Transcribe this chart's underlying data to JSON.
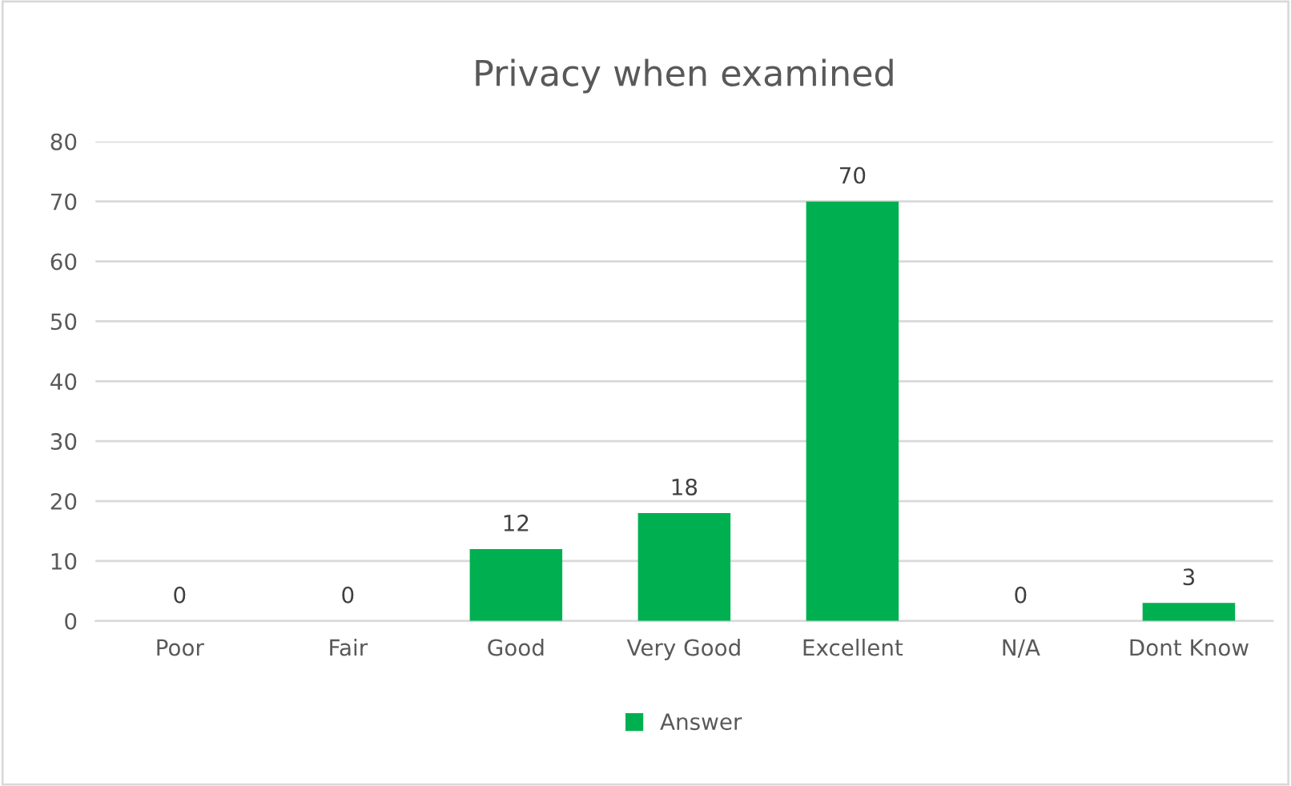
{
  "chart_data": {
    "type": "bar",
    "title": "Privacy when examined",
    "categories": [
      "Poor",
      "Fair",
      "Good",
      "Very Good",
      "Excellent",
      "N/A",
      "Dont Know"
    ],
    "series": [
      {
        "name": "Answer",
        "color": "#00b050",
        "values": [
          0,
          0,
          12,
          18,
          70,
          0,
          3
        ]
      }
    ],
    "ylim": [
      0,
      80
    ],
    "yticks": [
      0,
      10,
      20,
      30,
      40,
      50,
      60,
      70,
      80
    ],
    "grid": "y",
    "legend": "bottom",
    "data_labels": true
  }
}
